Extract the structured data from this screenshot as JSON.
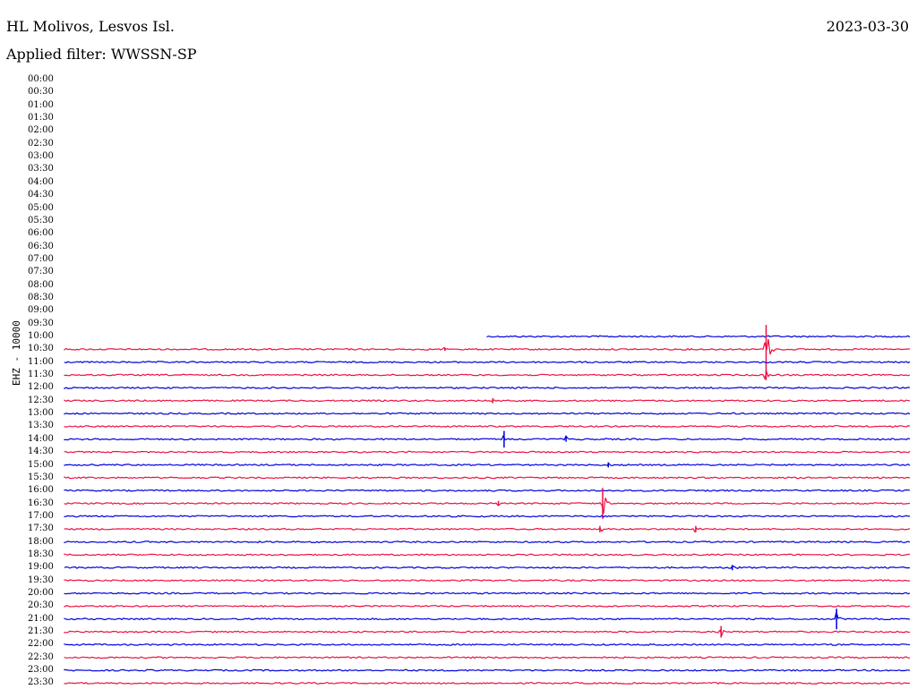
{
  "header": {
    "station": "HL Molivos, Lesvos Isl.",
    "filter": "Applied filter: WWSSN-SP",
    "date": "2023-03-30"
  },
  "channel_label": "EHZ - 10000",
  "colors": {
    "blue": "#0000dd",
    "red": "#ee1144"
  },
  "chart_data": {
    "type": "line",
    "title": "",
    "y_tick_labels": [
      "00:00",
      "00:30",
      "01:00",
      "01:30",
      "02:00",
      "02:30",
      "03:00",
      "03:30",
      "04:00",
      "04:30",
      "05:00",
      "05:30",
      "06:00",
      "06:30",
      "07:00",
      "07:30",
      "08:00",
      "08:30",
      "09:00",
      "09:30",
      "10:00",
      "10:30",
      "11:00",
      "11:30",
      "12:00",
      "12:30",
      "13:00",
      "13:30",
      "14:00",
      "14:30",
      "15:00",
      "15:30",
      "16:00",
      "16:30",
      "17:00",
      "17:30",
      "18:00",
      "18:30",
      "19:00",
      "19:30",
      "20:00",
      "20:30",
      "21:00",
      "21:30",
      "22:00",
      "22:30",
      "23:00",
      "23:30"
    ],
    "x_range_minutes": [
      0,
      30
    ],
    "recording_start": "10:00",
    "recording_start_minute": 15,
    "events": [
      {
        "row": "10:30",
        "minute": 13.5,
        "amp": 0.25
      },
      {
        "row": "10:30",
        "minute": 24.9,
        "amp": 3.8
      },
      {
        "row": "11:30",
        "minute": 24.9,
        "amp": 0.8
      },
      {
        "row": "12:30",
        "minute": 15.2,
        "amp": 0.4
      },
      {
        "row": "14:00",
        "minute": 15.6,
        "amp": 1.3
      },
      {
        "row": "14:00",
        "minute": 17.8,
        "amp": 0.4
      },
      {
        "row": "15:00",
        "minute": 19.3,
        "amp": 0.4
      },
      {
        "row": "16:30",
        "minute": 19.1,
        "amp": 2.4
      },
      {
        "row": "16:30",
        "minute": 15.4,
        "amp": 0.4
      },
      {
        "row": "17:30",
        "minute": 19.0,
        "amp": 0.5
      },
      {
        "row": "17:30",
        "minute": 22.4,
        "amp": 0.5
      },
      {
        "row": "19:00",
        "minute": 23.7,
        "amp": 0.4
      },
      {
        "row": "21:00",
        "minute": 27.4,
        "amp": 1.6
      },
      {
        "row": "21:30",
        "minute": 23.3,
        "amp": 0.9
      }
    ]
  }
}
